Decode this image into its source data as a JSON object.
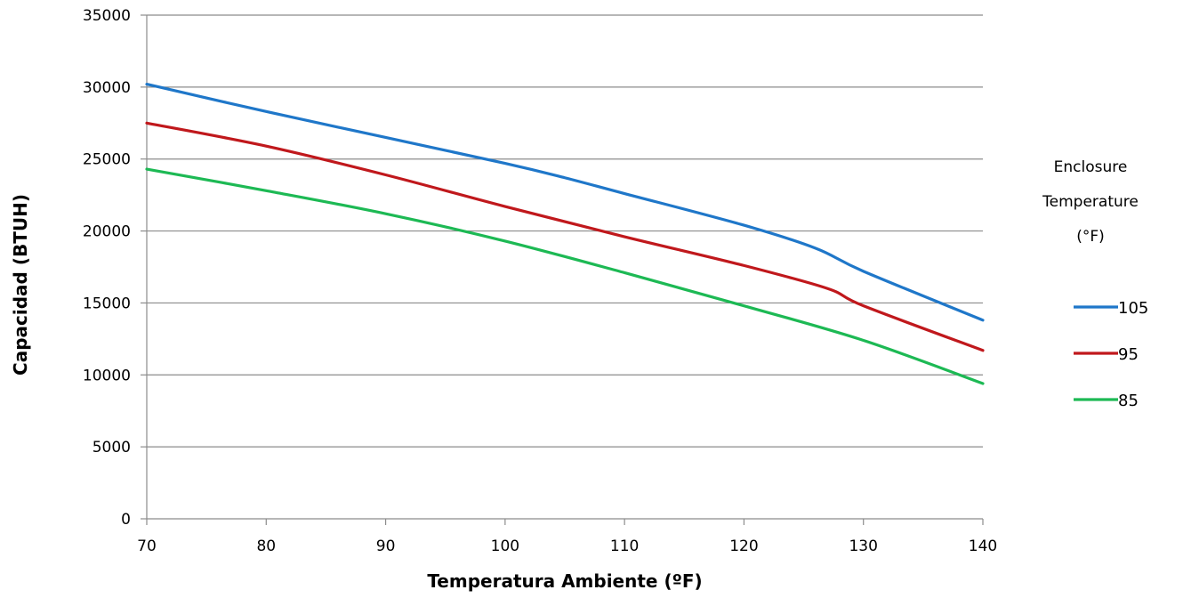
{
  "chart_data": {
    "type": "line",
    "title": "",
    "xlabel": "Temperatura Ambiente (ºF)",
    "ylabel": "Capacidad (BTUH)",
    "xlim": [
      70,
      140
    ],
    "ylim": [
      0,
      35000
    ],
    "x_ticks": [
      70,
      80,
      90,
      100,
      110,
      120,
      130,
      140
    ],
    "y_ticks": [
      0,
      5000,
      10000,
      15000,
      20000,
      25000,
      30000,
      35000
    ],
    "grid": true,
    "legend": {
      "title_lines": [
        "Enclosure",
        "Temperature",
        "(°F)"
      ],
      "placement": "right"
    },
    "series": [
      {
        "name": "105",
        "color": "#1F77C9",
        "points": [
          [
            70,
            30200
          ],
          [
            80,
            28300
          ],
          [
            90,
            26500
          ],
          [
            100,
            24700
          ],
          [
            105,
            23700
          ],
          [
            110,
            22600
          ],
          [
            120,
            20400
          ],
          [
            126,
            18800
          ],
          [
            130,
            17200
          ],
          [
            140,
            13800
          ]
        ]
      },
      {
        "name": "95",
        "color": "#C0181C",
        "points": [
          [
            70,
            27500
          ],
          [
            80,
            25900
          ],
          [
            90,
            23900
          ],
          [
            100,
            21700
          ],
          [
            110,
            19600
          ],
          [
            120,
            17600
          ],
          [
            127,
            16000
          ],
          [
            130,
            14800
          ],
          [
            140,
            11700
          ]
        ]
      },
      {
        "name": "85",
        "color": "#1DB954",
        "points": [
          [
            70,
            24300
          ],
          [
            80,
            22800
          ],
          [
            90,
            21200
          ],
          [
            100,
            19300
          ],
          [
            110,
            17100
          ],
          [
            120,
            14800
          ],
          [
            130,
            12400
          ],
          [
            140,
            9400
          ]
        ]
      }
    ]
  }
}
